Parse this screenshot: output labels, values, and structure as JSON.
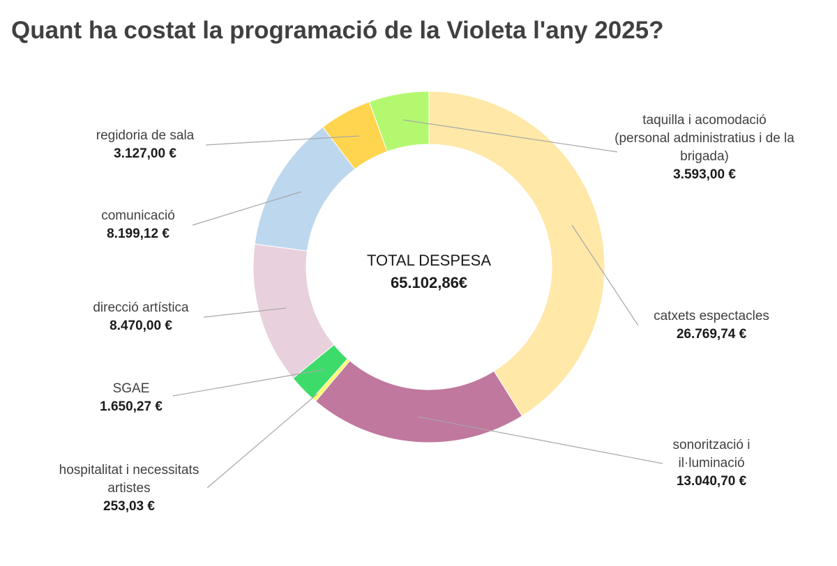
{
  "chart_data": {
    "type": "pie",
    "subtype": "donut",
    "title": "Quant ha costat la programació de la Violeta l'any 2025?",
    "center_label": "TOTAL DESPESA",
    "center_value": "65.102,86€",
    "start": "top",
    "direction": "clockwise",
    "slices": [
      {
        "label": "catxets espectacles",
        "value": 26769.74,
        "display": "26.769,74 €",
        "color": "#FFE8A8"
      },
      {
        "label": "sonorització i il·luminació",
        "value": 13040.7,
        "display": "13.040,70 €",
        "color": "#C0789E"
      },
      {
        "label": "hospitalitat i necessitats artistes",
        "value": 253.03,
        "display": "253,03 €",
        "color": "#FFFF66"
      },
      {
        "label": "SGAE",
        "value": 1650.27,
        "display": "1.650,27 €",
        "color": "#3DDC6A"
      },
      {
        "label": "direcció artística",
        "value": 8470.0,
        "display": "8.470,00 €",
        "color": "#E8D0DC"
      },
      {
        "label": "comunicació",
        "value": 8199.12,
        "display": "8.199,12 €",
        "color": "#BDD7EE"
      },
      {
        "label": "regidoria de sala",
        "value": 3127.0,
        "display": "3.127,00 €",
        "color": "#FFD54F"
      },
      {
        "label": "taquilla i acomodació (personal administratius i de la brigada)",
        "value": 3593.0,
        "display": "3.593,00 €",
        "color": "#B4F870"
      }
    ]
  }
}
